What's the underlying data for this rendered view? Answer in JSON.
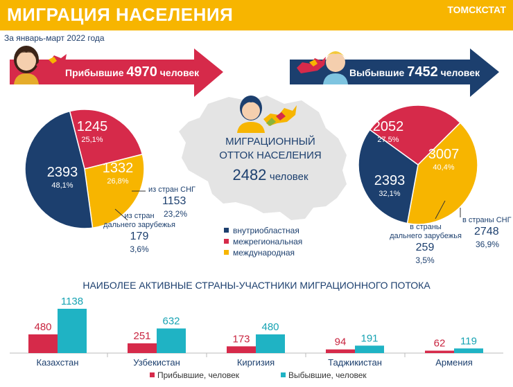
{
  "header": {
    "title": "МИГРАЦИЯ НАСЕЛЕНИЯ",
    "org": "ТОМСКСТАТ"
  },
  "subtitle": "За январь-март 2022 года",
  "colors": {
    "domestic": "#1c3f6e",
    "interregional": "#d62a4a",
    "international": "#f7b500",
    "arrivals": "#d62a4a",
    "departures": "#1fb3c4"
  },
  "arrivals_banner": {
    "label": "Прибывшие",
    "value": "4970",
    "unit": "человек"
  },
  "departures_banner": {
    "label": "Выбывшие",
    "value": "7452",
    "unit": "человек"
  },
  "center": {
    "line1": "МИГРАЦИОННЫЙ",
    "line2": "ОТТОК НАСЕЛЕНИЯ",
    "value": "2482",
    "unit": "человек"
  },
  "legend": [
    "внутриобластная",
    "межрегиональная",
    "международная"
  ],
  "arrivals_notes": {
    "cis_label": "из стран СНГ",
    "cis_value": "1153",
    "cis_pct": "23,2%",
    "far_label1": "из стран",
    "far_label2": "дальнего зарубежья",
    "far_value": "179",
    "far_pct": "3,6%"
  },
  "departures_notes": {
    "cis_label": "в страны СНГ",
    "cis_value": "2748",
    "cis_pct": "36,9%",
    "far_label1": "в страны",
    "far_label2": "дальнего зарубежья",
    "far_value": "259",
    "far_pct": "3,5%"
  },
  "bar_title": "НАИБОЛЕЕ АКТИВНЫЕ СТРАНЫ-УЧАСТНИКИ МИГРАЦИОННОГО ПОТОКА",
  "chart_data": [
    {
      "type": "pie",
      "labels": [
        "внутриобластная",
        "межрегиональная",
        "международная"
      ],
      "values": [
        2393,
        1245,
        1332
      ],
      "value_labels": [
        "2393",
        "1245",
        "1332"
      ],
      "percents": [
        "48,1%",
        "25,1%",
        "26,8%"
      ]
    },
    {
      "type": "pie",
      "labels": [
        "внутриобластная",
        "межрегиональная",
        "международная"
      ],
      "values": [
        2393,
        2052,
        3007
      ],
      "value_labels": [
        "2393",
        "2052",
        "3007"
      ],
      "percents": [
        "32,1%",
        "27,5%",
        "40,4%"
      ]
    },
    {
      "type": "bar",
      "categories": [
        "Казахстан",
        "Узбекистан",
        "Киргизия",
        "Таджикистан",
        "Армения"
      ],
      "series": [
        {
          "name": "Прибывшие, человек",
          "values": [
            480,
            251,
            173,
            94,
            62
          ]
        },
        {
          "name": "Выбывшие, человек",
          "values": [
            1138,
            632,
            480,
            191,
            119
          ]
        }
      ],
      "ylim": [
        0,
        1138
      ]
    }
  ]
}
